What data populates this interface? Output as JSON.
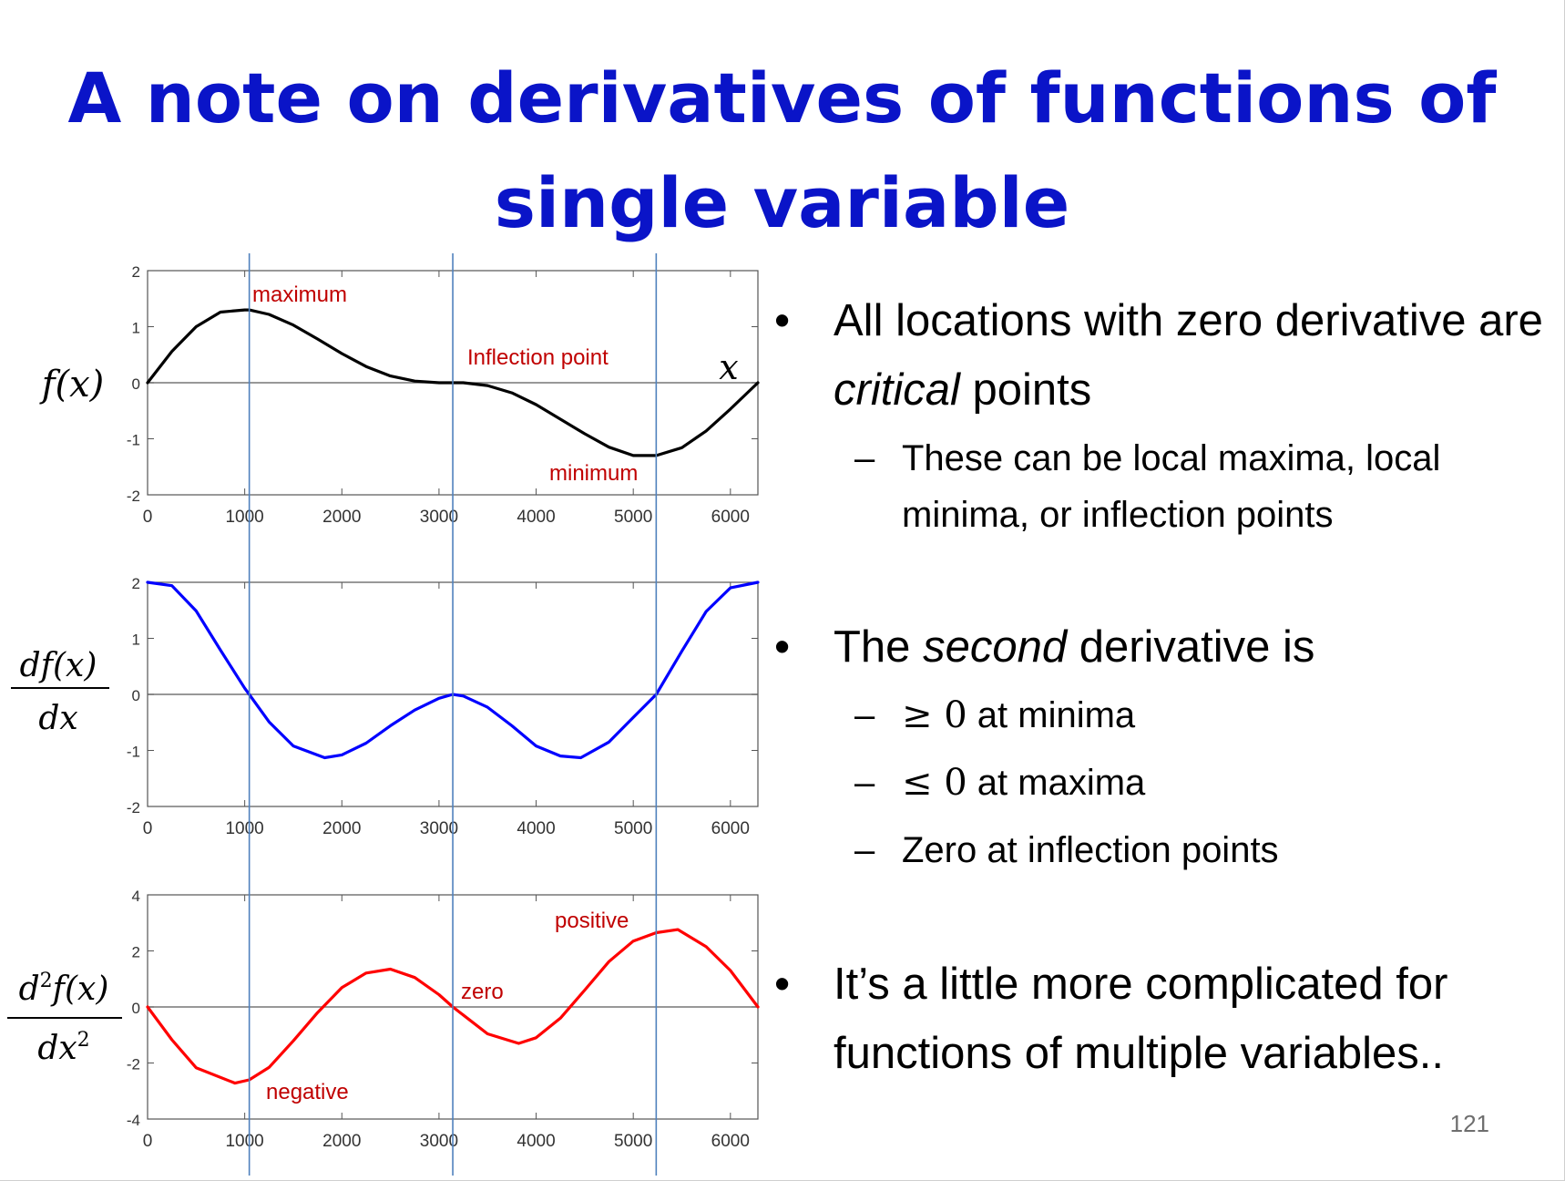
{
  "slide": {
    "title_line_1": "A note on derivatives of functions of",
    "title_line_2": "single variable",
    "page_number": "121"
  },
  "bullets": {
    "b1_text_before": "All locations with zero derivative are ",
    "b1_italic": "critical",
    "b1_text_after": " points",
    "b1_sub": "These can be local maxima, local minima, or inflection points",
    "b2_text_before": "The ",
    "b2_italic": "second",
    "b2_text_after": " derivative is",
    "b2_sub1_symbol": "≥ 0",
    "b2_sub1_text": " at minima",
    "b2_sub2_symbol": "≤ 0",
    "b2_sub2_text": " at maxima",
    "b2_sub3": "Zero at inflection points",
    "b3_text": "It’s a little more complicated for functions of multiple variables.."
  },
  "colors": {
    "title": "#0a14c8",
    "f_curve": "#000000",
    "df_curve": "#0000ff",
    "d2f_curve": "#ff0000",
    "annotation": "#c00000",
    "vertical_lines": "#4f81bd"
  },
  "chart_data": [
    {
      "type": "line",
      "ylabel": "f(x)",
      "xlabel": "x",
      "xlim": [
        0,
        6283
      ],
      "ylim": [
        -2,
        2
      ],
      "xticks": [
        0,
        1000,
        2000,
        3000,
        4000,
        5000,
        6000
      ],
      "yticks": [
        2,
        1,
        0,
        -1,
        -2
      ],
      "zero_line": true,
      "annotations": [
        "maximum",
        "Inflection point",
        "minimum"
      ],
      "series": [
        {
          "color": "#000000",
          "x": [
            0,
            250,
            500,
            750,
            1000,
            1047,
            1250,
            1500,
            1750,
            2000,
            2250,
            2500,
            2750,
            3000,
            3142,
            3250,
            3500,
            3750,
            4000,
            4250,
            4500,
            4750,
            5000,
            5236,
            5500,
            5750,
            6000,
            6283
          ],
          "y": [
            0,
            0.56,
            1.0,
            1.26,
            1.3,
            1.3,
            1.22,
            1.03,
            0.78,
            0.52,
            0.29,
            0.12,
            0.03,
            0.0,
            0.0,
            0.0,
            -0.05,
            -0.18,
            -0.39,
            -0.65,
            -0.91,
            -1.15,
            -1.3,
            -1.3,
            -1.16,
            -0.86,
            -0.47,
            0
          ]
        }
      ]
    },
    {
      "type": "line",
      "ylabel": "df(x)/dx",
      "xlim": [
        0,
        6283
      ],
      "ylim": [
        -2,
        2
      ],
      "xticks": [
        0,
        1000,
        2000,
        3000,
        4000,
        5000,
        6000
      ],
      "yticks": [
        2,
        1,
        0,
        -1,
        -2
      ],
      "zero_line": true,
      "series": [
        {
          "color": "#0000ff",
          "x": [
            0,
            250,
            500,
            750,
            1000,
            1047,
            1250,
            1500,
            1823,
            2000,
            2250,
            2500,
            2750,
            3000,
            3142,
            3250,
            3500,
            3750,
            4000,
            4250,
            4460,
            4750,
            5000,
            5236,
            5500,
            5750,
            6000,
            6283
          ],
          "y": [
            2.0,
            1.94,
            1.49,
            0.79,
            0.11,
            0.0,
            -0.49,
            -0.92,
            -1.13,
            -1.08,
            -0.87,
            -0.56,
            -0.28,
            -0.07,
            0.0,
            -0.03,
            -0.23,
            -0.56,
            -0.92,
            -1.1,
            -1.13,
            -0.85,
            -0.41,
            0.0,
            0.77,
            1.48,
            1.9,
            2.0
          ]
        }
      ]
    },
    {
      "type": "line",
      "ylabel": "d²f(x)/dx²",
      "xlim": [
        0,
        6283
      ],
      "ylim": [
        -4,
        4
      ],
      "xticks": [
        0,
        1000,
        2000,
        3000,
        4000,
        5000,
        6000
      ],
      "yticks": [
        4,
        2,
        0,
        -2,
        -4
      ],
      "zero_line": true,
      "annotations": [
        "positive",
        "zero",
        "negative"
      ],
      "series": [
        {
          "color": "#ff0000",
          "x": [
            0,
            250,
            500,
            900,
            1047,
            1250,
            1500,
            1750,
            2000,
            2250,
            2500,
            2750,
            3000,
            3142,
            3500,
            3820,
            4000,
            4250,
            4500,
            4750,
            5000,
            5236,
            5460,
            5750,
            6000,
            6283
          ],
          "y": [
            0.0,
            -1.17,
            -2.17,
            -2.72,
            -2.6,
            -2.16,
            -1.21,
            -0.2,
            0.69,
            1.21,
            1.35,
            1.05,
            0.44,
            0.0,
            -0.96,
            -1.3,
            -1.1,
            -0.4,
            0.6,
            1.62,
            2.35,
            2.65,
            2.76,
            2.15,
            1.3,
            0.0
          ]
        }
      ]
    }
  ]
}
